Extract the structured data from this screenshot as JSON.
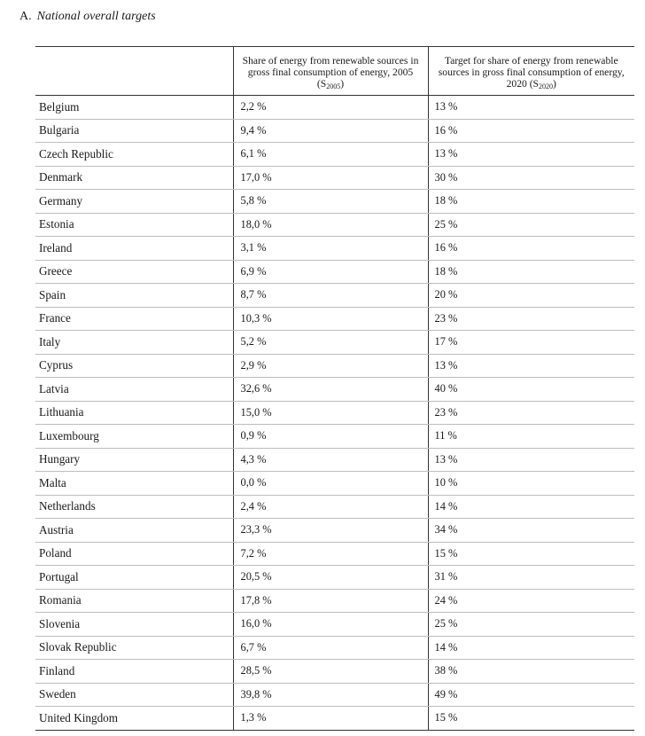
{
  "section": {
    "label": "A.",
    "title": "National overall targets"
  },
  "table": {
    "headers": {
      "country": "",
      "share_2005_text": "Share of energy from renewable sources in gross final consumption of energy, 2005 (S",
      "share_2005_sub": "2005",
      "target_2020_text": "Target for share of energy from renewable sources in gross final consumption of energy, 2020 (S",
      "target_2020_sub": "2020"
    },
    "rows": [
      {
        "country": "Belgium",
        "share_2005": "2,2 %",
        "target_2020": "13 %"
      },
      {
        "country": "Bulgaria",
        "share_2005": "9,4 %",
        "target_2020": "16 %"
      },
      {
        "country": "Czech Republic",
        "share_2005": "6,1 %",
        "target_2020": "13 %"
      },
      {
        "country": "Denmark",
        "share_2005": "17,0 %",
        "target_2020": "30 %"
      },
      {
        "country": "Germany",
        "share_2005": "5,8 %",
        "target_2020": "18 %"
      },
      {
        "country": "Estonia",
        "share_2005": "18,0 %",
        "target_2020": "25 %"
      },
      {
        "country": "Ireland",
        "share_2005": "3,1 %",
        "target_2020": "16 %"
      },
      {
        "country": "Greece",
        "share_2005": "6,9 %",
        "target_2020": "18 %"
      },
      {
        "country": "Spain",
        "share_2005": "8,7 %",
        "target_2020": "20 %"
      },
      {
        "country": "France",
        "share_2005": "10,3 %",
        "target_2020": "23 %"
      },
      {
        "country": "Italy",
        "share_2005": "5,2 %",
        "target_2020": "17 %"
      },
      {
        "country": "Cyprus",
        "share_2005": "2,9 %",
        "target_2020": "13 %"
      },
      {
        "country": "Latvia",
        "share_2005": "32,6 %",
        "target_2020": "40 %"
      },
      {
        "country": "Lithuania",
        "share_2005": "15,0 %",
        "target_2020": "23 %"
      },
      {
        "country": "Luxembourg",
        "share_2005": "0,9 %",
        "target_2020": "11 %"
      },
      {
        "country": "Hungary",
        "share_2005": "4,3 %",
        "target_2020": "13 %"
      },
      {
        "country": "Malta",
        "share_2005": "0,0 %",
        "target_2020": "10 %"
      },
      {
        "country": "Netherlands",
        "share_2005": "2,4 %",
        "target_2020": "14 %"
      },
      {
        "country": "Austria",
        "share_2005": "23,3 %",
        "target_2020": "34 %"
      },
      {
        "country": "Poland",
        "share_2005": "7,2 %",
        "target_2020": "15 %"
      },
      {
        "country": "Portugal",
        "share_2005": "20,5 %",
        "target_2020": "31 %"
      },
      {
        "country": "Romania",
        "share_2005": "17,8 %",
        "target_2020": "24 %"
      },
      {
        "country": "Slovenia",
        "share_2005": "16,0 %",
        "target_2020": "25 %"
      },
      {
        "country": "Slovak Republic",
        "share_2005": "6,7 %",
        "target_2020": "14 %"
      },
      {
        "country": "Finland",
        "share_2005": "28,5 %",
        "target_2020": "38 %"
      },
      {
        "country": "Sweden",
        "share_2005": "39,8 %",
        "target_2020": "49 %"
      },
      {
        "country": "United Kingdom",
        "share_2005": "1,3 %",
        "target_2020": "15 %"
      }
    ]
  }
}
